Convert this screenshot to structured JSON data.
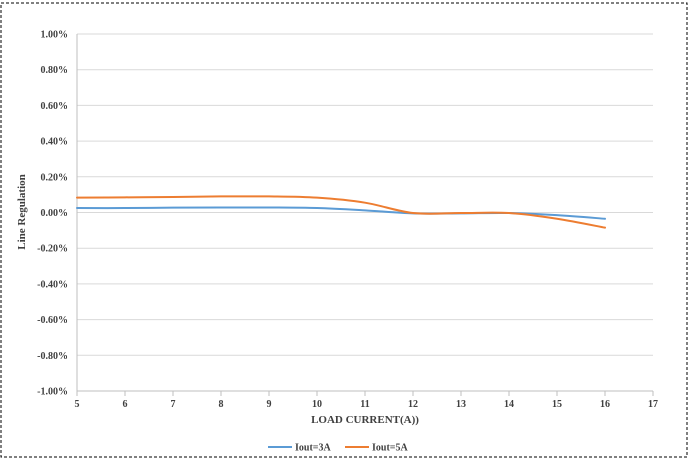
{
  "chart_data": {
    "type": "line",
    "title": "",
    "xlabel": "LOAD CURRENT(A))",
    "ylabel": "Line Regulation",
    "xlim": [
      5,
      17
    ],
    "ylim": [
      -1.0,
      1.0
    ],
    "x_ticks": [
      5,
      6,
      7,
      8,
      9,
      10,
      11,
      12,
      13,
      14,
      15,
      16,
      17
    ],
    "y_ticks": [
      1.0,
      0.8,
      0.6,
      0.4,
      0.2,
      0.0,
      -0.2,
      -0.4,
      -0.6,
      -0.8,
      -1.0
    ],
    "x_tick_labels": [
      "5",
      "6",
      "7",
      "8",
      "9",
      "10",
      "11",
      "12",
      "13",
      "14",
      "15",
      "16",
      "17"
    ],
    "y_tick_labels": [
      "1.00%",
      "0.80%",
      "0.60%",
      "0.40%",
      "0.20%",
      "0.00%",
      "-0.20%",
      "-0.40%",
      "-0.60%",
      "-0.80%",
      "-1.00%"
    ],
    "y_unit": "%",
    "grid": "horizontal",
    "legend_position": "bottom-center",
    "series": [
      {
        "name": "Iout=3A",
        "color": "#5b9bd5",
        "x": [
          5,
          6,
          7,
          8,
          9,
          10,
          11,
          12,
          13,
          14,
          15,
          16
        ],
        "values": [
          0.025,
          0.025,
          0.027,
          0.028,
          0.028,
          0.025,
          0.012,
          -0.005,
          -0.005,
          -0.003,
          -0.015,
          -0.035
        ]
      },
      {
        "name": "Iout=5A",
        "color": "#ed7d31",
        "x": [
          5,
          6,
          7,
          8,
          9,
          10,
          11,
          12,
          13,
          14,
          15,
          16
        ],
        "values": [
          0.083,
          0.085,
          0.087,
          0.09,
          0.09,
          0.083,
          0.055,
          -0.003,
          -0.003,
          -0.003,
          -0.035,
          -0.085
        ]
      }
    ]
  }
}
